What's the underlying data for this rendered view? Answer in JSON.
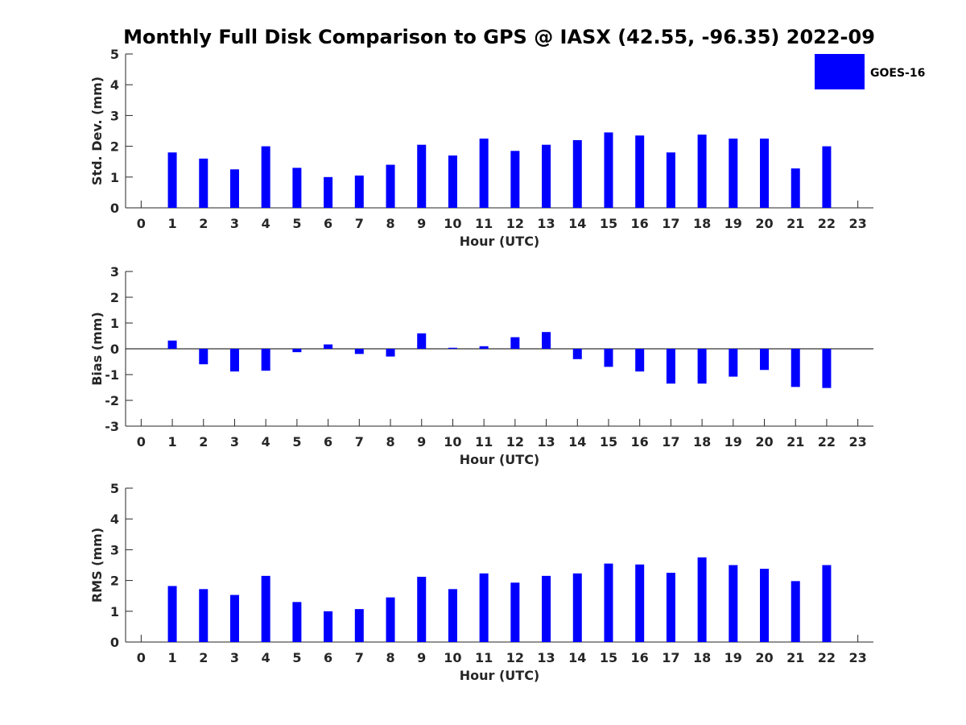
{
  "title": "Monthly Full Disk Comparison to GPS @ IASX (42.55, -96.35) 2022-09",
  "legend": {
    "label": "GOES-16",
    "color": "#0000ff",
    "placement": "top-right"
  },
  "chart_data": [
    {
      "type": "bar",
      "ylabel": "Std. Dev. (mm)",
      "xlabel": "Hour (UTC)",
      "xlim": [
        -0.5,
        23.5
      ],
      "ylim": [
        0,
        5
      ],
      "yticks": [
        0,
        1,
        2,
        3,
        4,
        5
      ],
      "categories": [
        0,
        1,
        2,
        3,
        4,
        5,
        6,
        7,
        8,
        9,
        10,
        11,
        12,
        13,
        14,
        15,
        16,
        17,
        18,
        19,
        20,
        21,
        22,
        23
      ],
      "series": [
        {
          "name": "GOES-16",
          "values": [
            null,
            1.8,
            1.6,
            1.25,
            2.0,
            1.3,
            1.0,
            1.05,
            1.4,
            2.05,
            1.7,
            2.25,
            1.85,
            2.05,
            2.2,
            2.45,
            2.35,
            1.8,
            2.38,
            2.25,
            2.25,
            1.28,
            2.0,
            null
          ]
        }
      ]
    },
    {
      "type": "bar",
      "ylabel": "Bias (mm)",
      "xlabel": "Hour (UTC)",
      "xlim": [
        -0.5,
        23.5
      ],
      "ylim": [
        -3,
        3
      ],
      "yticks": [
        -3,
        -2,
        -1,
        0,
        1,
        2,
        3
      ],
      "zero_line": true,
      "categories": [
        0,
        1,
        2,
        3,
        4,
        5,
        6,
        7,
        8,
        9,
        10,
        11,
        12,
        13,
        14,
        15,
        16,
        17,
        18,
        19,
        20,
        21,
        22,
        23
      ],
      "series": [
        {
          "name": "GOES-16",
          "values": [
            null,
            0.32,
            -0.6,
            -0.88,
            -0.85,
            -0.13,
            0.17,
            -0.2,
            -0.3,
            0.6,
            0.04,
            0.1,
            0.45,
            0.65,
            -0.4,
            -0.7,
            -0.88,
            -1.35,
            -1.35,
            -1.08,
            -0.82,
            -1.48,
            -1.52,
            null
          ]
        }
      ]
    },
    {
      "type": "bar",
      "ylabel": "RMS (mm)",
      "xlabel": "Hour (UTC)",
      "xlim": [
        -0.5,
        23.5
      ],
      "ylim": [
        0,
        5
      ],
      "yticks": [
        0,
        1,
        2,
        3,
        4,
        5
      ],
      "categories": [
        0,
        1,
        2,
        3,
        4,
        5,
        6,
        7,
        8,
        9,
        10,
        11,
        12,
        13,
        14,
        15,
        16,
        17,
        18,
        19,
        20,
        21,
        22,
        23
      ],
      "series": [
        {
          "name": "GOES-16",
          "values": [
            null,
            1.82,
            1.72,
            1.53,
            2.15,
            1.3,
            1.0,
            1.07,
            1.45,
            2.12,
            1.72,
            2.23,
            1.93,
            2.15,
            2.23,
            2.55,
            2.52,
            2.25,
            2.75,
            2.5,
            2.38,
            1.98,
            2.5,
            null
          ]
        }
      ]
    }
  ]
}
